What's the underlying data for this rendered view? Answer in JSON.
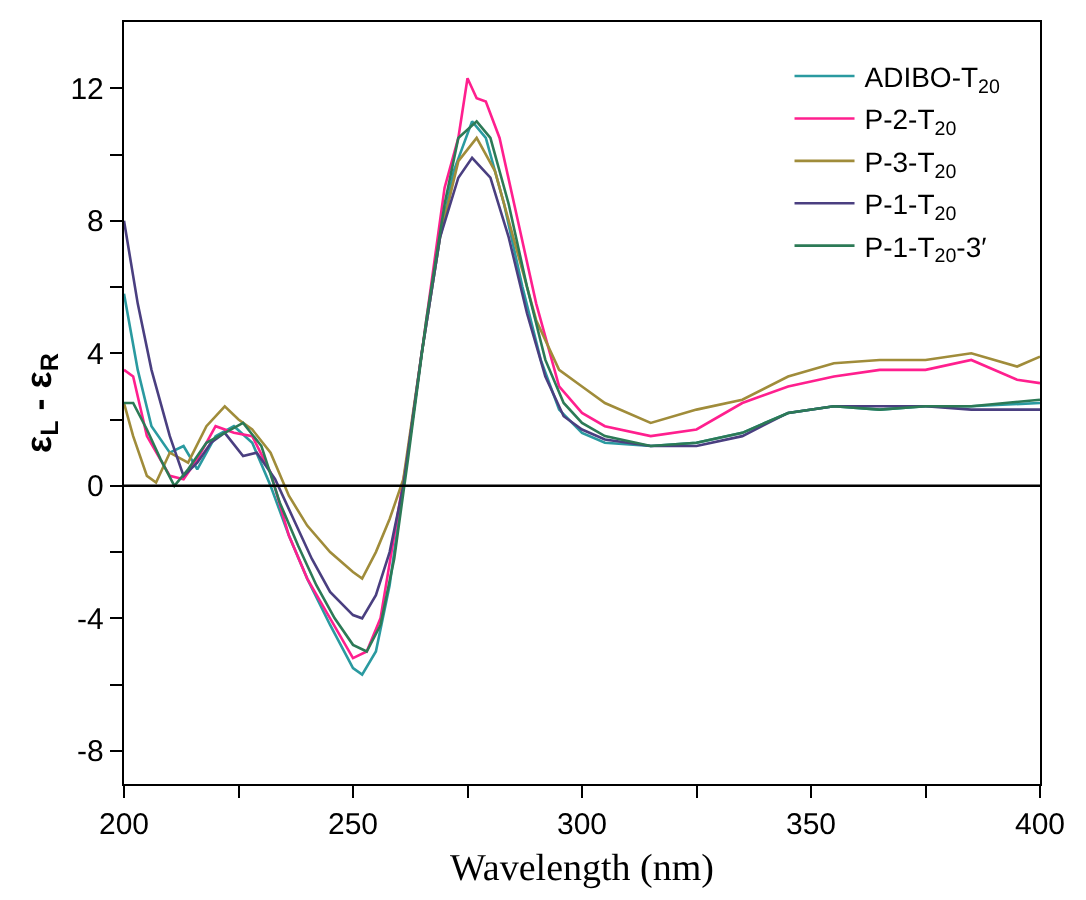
{
  "chart_data": {
    "type": "line",
    "xlabel": "Wavelength (nm)",
    "ylabel": "ε$_{L}$ - ε$_{R}$",
    "xlim": [
      200,
      400
    ],
    "xticks": [
      200,
      {
        "value": 225,
        "label": null
      },
      250,
      {
        "value": 275,
        "label": null
      },
      300,
      {
        "value": 325,
        "label": null
      },
      350,
      {
        "value": 375,
        "label": null
      },
      400
    ],
    "ylim": [
      -9,
      14
    ],
    "yticks": [
      -8,
      {
        "value": -6,
        "label": null
      },
      -4,
      {
        "value": -2,
        "label": null
      },
      0,
      {
        "value": 2,
        "label": null
      },
      4,
      {
        "value": 6,
        "label": null
      },
      8,
      {
        "value": 10,
        "label": null
      },
      12
    ],
    "grid": false,
    "legend": "top right",
    "marker": "none",
    "line_style": "solid",
    "ref_lines": [
      {
        "axis": "y",
        "value": 0,
        "label": null,
        "color": "#000000"
      }
    ],
    "series": [
      {
        "name": "ADIBO-T$_{20}$",
        "color": "#2a9aa0",
        "x": [
          200,
          203,
          206,
          210,
          213,
          216,
          220,
          224,
          228,
          232,
          236,
          240,
          245,
          250,
          252,
          255,
          258,
          261,
          265,
          269,
          272,
          276,
          279,
          283,
          287,
          291,
          295,
          300,
          305,
          315,
          325,
          335,
          345,
          355,
          365,
          375,
          385,
          400
        ],
        "values": [
          5.8,
          3.5,
          1.8,
          1.0,
          1.2,
          0.5,
          1.5,
          1.8,
          1.3,
          0,
          -1.5,
          -2.8,
          -4.2,
          -5.5,
          -5.7,
          -5.0,
          -3,
          0,
          4,
          7.5,
          9.5,
          11,
          10.5,
          8.5,
          6,
          3.8,
          2.3,
          1.6,
          1.3,
          1.2,
          1.3,
          1.6,
          2.2,
          2.4,
          2.3,
          2.4,
          2.4,
          2.5
        ]
      },
      {
        "name": "P-2-T$_{20}$",
        "color": "#ff1f8e",
        "x": [
          200,
          202,
          205,
          210,
          213,
          216,
          220,
          224,
          228,
          232,
          236,
          240,
          245,
          250,
          253,
          256,
          259,
          262,
          266,
          270,
          273,
          275,
          277,
          279,
          282,
          286,
          290,
          295,
          300,
          305,
          315,
          325,
          335,
          345,
          355,
          365,
          375,
          385,
          395,
          400
        ],
        "values": [
          3.5,
          3.3,
          1.5,
          0.3,
          0.2,
          0.8,
          1.8,
          1.6,
          1.5,
          0.4,
          -1.5,
          -2.8,
          -4,
          -5.2,
          -5.0,
          -4.0,
          -1.5,
          1.0,
          5,
          9,
          10.5,
          12.3,
          11.7,
          11.6,
          10.5,
          8,
          5.5,
          3,
          2.2,
          1.8,
          1.5,
          1.7,
          2.5,
          3.0,
          3.3,
          3.5,
          3.5,
          3.8,
          3.2,
          3.1
        ]
      },
      {
        "name": "P-3-T$_{20}$",
        "color": "#a08c3a",
        "x": [
          200,
          202,
          205,
          207,
          210,
          214,
          218,
          222,
          225,
          228,
          232,
          236,
          240,
          245,
          250,
          252,
          255,
          258,
          261,
          265,
          269,
          273,
          277,
          281,
          285,
          290,
          295,
          300,
          305,
          315,
          325,
          335,
          345,
          355,
          365,
          375,
          385,
          395,
          400
        ],
        "values": [
          2.5,
          1.5,
          0.3,
          0.1,
          1.0,
          0.7,
          1.8,
          2.4,
          2.0,
          1.7,
          1.0,
          -0.3,
          -1.2,
          -2.0,
          -2.6,
          -2.8,
          -2.0,
          -1.0,
          0.2,
          4,
          7.5,
          9.8,
          10.5,
          9.5,
          7.5,
          5,
          3.5,
          3.0,
          2.5,
          1.9,
          2.3,
          2.6,
          3.3,
          3.7,
          3.8,
          3.8,
          4.0,
          3.6,
          3.9
        ]
      },
      {
        "name": "P-1-T$_{20}$",
        "color": "#4a3f80",
        "x": [
          200,
          203,
          206,
          210,
          213,
          216,
          219,
          222,
          226,
          229,
          233,
          237,
          241,
          245,
          250,
          252,
          255,
          258,
          261,
          265,
          269,
          273,
          276,
          280,
          284,
          288,
          292,
          296,
          300,
          305,
          315,
          325,
          335,
          345,
          355,
          365,
          375,
          385,
          400
        ],
        "values": [
          8.0,
          5.5,
          3.5,
          1.5,
          0.3,
          0.7,
          1.3,
          1.6,
          0.9,
          1.0,
          0.2,
          -1.0,
          -2.2,
          -3.2,
          -3.9,
          -4.0,
          -3.3,
          -2.0,
          0,
          4,
          7.5,
          9.3,
          9.9,
          9.3,
          7.5,
          5.2,
          3.3,
          2.1,
          1.7,
          1.4,
          1.2,
          1.2,
          1.5,
          2.2,
          2.4,
          2.4,
          2.4,
          2.3,
          2.3
        ]
      },
      {
        "name": "P-1-T$_{20}$-3′",
        "color": "#2c7a56",
        "x": [
          200,
          202,
          205,
          208,
          211,
          214,
          218,
          222,
          226,
          230,
          234,
          238,
          242,
          246,
          250,
          253,
          256,
          259,
          262,
          266,
          270,
          273,
          277,
          280,
          284,
          288,
          292,
          296,
          300,
          305,
          315,
          325,
          335,
          345,
          355,
          365,
          375,
          385,
          400
        ],
        "values": [
          2.5,
          2.5,
          1.7,
          0.8,
          0.0,
          0.5,
          1.3,
          1.6,
          1.9,
          1.2,
          -0.5,
          -1.8,
          -3.0,
          -4.0,
          -4.8,
          -5.0,
          -4.2,
          -2.2,
          0.8,
          5,
          8.5,
          10.5,
          11.0,
          10.5,
          8.5,
          6,
          3.8,
          2.5,
          1.9,
          1.5,
          1.2,
          1.3,
          1.6,
          2.2,
          2.4,
          2.3,
          2.4,
          2.4,
          2.6
        ]
      }
    ]
  }
}
